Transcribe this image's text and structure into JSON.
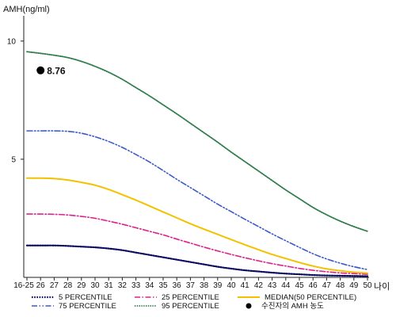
{
  "chart_data": {
    "type": "line",
    "ylabel": "AMH(ng/ml)",
    "xlabel": "나이",
    "categories": [
      "16-25",
      "26",
      "27",
      "28",
      "29",
      "30",
      "31",
      "32",
      "33",
      "34",
      "35",
      "36",
      "37",
      "38",
      "39",
      "40",
      "41",
      "42",
      "43",
      "44",
      "45",
      "46",
      "47",
      "48",
      "49",
      "50"
    ],
    "yticks": [
      5,
      10
    ],
    "ylim": [
      0,
      11
    ],
    "series": [
      {
        "name": "5 PERCENTILE",
        "color": "#0a0a60",
        "style": "dotted",
        "values": [
          1.35,
          1.35,
          1.35,
          1.33,
          1.3,
          1.27,
          1.22,
          1.15,
          1.05,
          0.95,
          0.85,
          0.75,
          0.65,
          0.55,
          0.45,
          0.37,
          0.3,
          0.25,
          0.2,
          0.16,
          0.13,
          0.1,
          0.08,
          0.07,
          0.06,
          0.05
        ]
      },
      {
        "name": "25 PERCENTILE",
        "color": "#e0208c",
        "style": "dashdot",
        "values": [
          2.68,
          2.68,
          2.67,
          2.64,
          2.58,
          2.5,
          2.38,
          2.25,
          2.1,
          1.95,
          1.8,
          1.62,
          1.45,
          1.28,
          1.12,
          0.97,
          0.83,
          0.7,
          0.58,
          0.48,
          0.38,
          0.3,
          0.24,
          0.19,
          0.16,
          0.13
        ]
      },
      {
        "name": "MEDIAN(50 PERCENTILE)",
        "color": "#f2c200",
        "style": "solid",
        "values": [
          4.2,
          4.2,
          4.18,
          4.12,
          4.02,
          3.9,
          3.72,
          3.5,
          3.27,
          3.02,
          2.77,
          2.52,
          2.27,
          2.04,
          1.82,
          1.6,
          1.38,
          1.17,
          0.97,
          0.8,
          0.63,
          0.48,
          0.36,
          0.28,
          0.22,
          0.18
        ]
      },
      {
        "name": "75 PERCENTILE",
        "color": "#3a5ac8",
        "style": "dashdotdot",
        "values": [
          6.2,
          6.2,
          6.2,
          6.18,
          6.1,
          5.95,
          5.75,
          5.5,
          5.2,
          4.88,
          4.52,
          4.15,
          3.8,
          3.45,
          3.1,
          2.78,
          2.46,
          2.15,
          1.84,
          1.55,
          1.27,
          1.0,
          0.78,
          0.6,
          0.45,
          0.33
        ]
      },
      {
        "name": "95 PERCENTILE",
        "color": "#2e7d4a",
        "style": "densedot",
        "values": [
          9.55,
          9.48,
          9.4,
          9.3,
          9.14,
          8.93,
          8.68,
          8.38,
          8.03,
          7.68,
          7.3,
          6.92,
          6.52,
          6.12,
          5.72,
          5.3,
          4.9,
          4.5,
          4.1,
          3.7,
          3.33,
          2.96,
          2.65,
          2.38,
          2.15,
          1.95
        ]
      }
    ],
    "point": {
      "name": "수진자의 AMH 농도",
      "x": "26",
      "y": 8.76,
      "label": "8.76"
    },
    "legend_placement": "bottom"
  }
}
